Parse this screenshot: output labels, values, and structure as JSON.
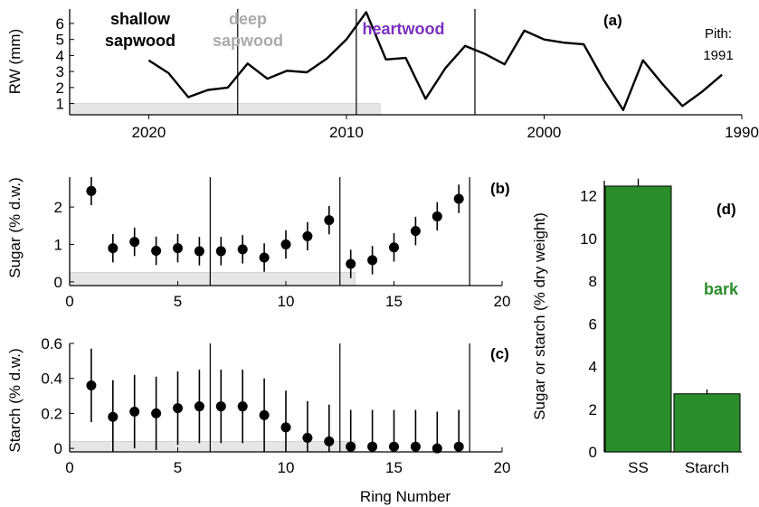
{
  "figure": {
    "shared_xlabel": "Ring Number"
  },
  "chart_data": [
    {
      "panel": "(a)",
      "type": "line",
      "ylabel": "RW (mm)",
      "xlim": [
        2024,
        1990
      ],
      "ylim": [
        0.3,
        6.9
      ],
      "x_reversed": true,
      "xticks": [
        2020,
        2010,
        2000,
        1990
      ],
      "yticks": [
        1,
        2,
        3,
        4,
        5,
        6
      ],
      "grid": false,
      "series": [
        {
          "x": [
            2020,
            2019,
            2018,
            2017,
            2016,
            2015,
            2014,
            2013,
            2012,
            2011,
            2010,
            2009,
            2008,
            2007,
            2006,
            2005,
            2004,
            2003,
            2002,
            2001,
            2000,
            1999,
            1998,
            1997,
            1996,
            1995,
            1994,
            1993,
            1992,
            1991
          ],
          "y": [
            3.7,
            2.9,
            1.4,
            1.85,
            2.0,
            3.5,
            2.55,
            3.05,
            2.95,
            3.8,
            5.0,
            6.7,
            3.75,
            3.85,
            1.3,
            3.2,
            4.6,
            4.1,
            3.45,
            5.55,
            5.0,
            4.8,
            4.7,
            2.5,
            0.6,
            3.7,
            2.2,
            0.85,
            1.75,
            2.8
          ]
        }
      ],
      "annotations": {
        "zone1": "shallow\nsapwood",
        "zone2": "deep\nsapwood",
        "zone3": "heartwood",
        "pith": "Pith:\n1991"
      },
      "zone_boundaries": [
        2015.5,
        2009.5,
        2003.5
      ],
      "shaded_band": {
        "x": [
          2024,
          2008.3
        ],
        "y": [
          0.3,
          1.0
        ]
      },
      "colors": {
        "zone1": "#000000",
        "zone2": "#aaaaaa",
        "zone3": "#7b2fbe",
        "shade": "#e6e6e6"
      }
    },
    {
      "panel": "(b)",
      "type": "scatter",
      "ylabel": "Sugar (% d.w.)",
      "xlim": [
        0,
        20
      ],
      "ylim": [
        -0.1,
        2.8
      ],
      "xticks": [
        0,
        5,
        10,
        15,
        20
      ],
      "yticks": [
        0,
        1,
        2
      ],
      "grid": false,
      "series": [
        {
          "x": [
            1,
            2,
            3,
            4,
            5,
            6,
            7,
            8,
            9,
            10,
            11,
            12,
            13,
            14,
            15,
            16,
            17,
            18
          ],
          "y": [
            2.43,
            0.9,
            1.07,
            0.83,
            0.9,
            0.82,
            0.82,
            0.87,
            0.65,
            1.0,
            1.22,
            1.65,
            0.48,
            0.58,
            0.92,
            1.36,
            1.75,
            2.22
          ],
          "err": [
            0.38,
            0.38,
            0.38,
            0.38,
            0.38,
            0.38,
            0.38,
            0.38,
            0.38,
            0.38,
            0.38,
            0.38,
            0.38,
            0.38,
            0.38,
            0.38,
            0.38,
            0.38
          ]
        }
      ],
      "zone_boundaries": [
        6.5,
        12.5,
        18.5
      ],
      "shaded_band": {
        "x": [
          0,
          13.2
        ],
        "y": [
          -0.1,
          0.25
        ]
      },
      "colors": {
        "shade": "#e6e6e6"
      }
    },
    {
      "panel": "(c)",
      "type": "scatter",
      "ylabel": "Starch (% d.w.)",
      "xlim": [
        0,
        20
      ],
      "ylim": [
        -0.02,
        0.6
      ],
      "xticks": [
        0,
        5,
        10,
        15,
        20
      ],
      "yticks": [
        0,
        0.2,
        0.4,
        0.6
      ],
      "yticklabels": [
        "0",
        "0.2",
        "0.4",
        "0.6"
      ],
      "grid": false,
      "series": [
        {
          "x": [
            1,
            2,
            3,
            4,
            5,
            6,
            7,
            8,
            9,
            10,
            11,
            12,
            13,
            14,
            15,
            16,
            17,
            18
          ],
          "y": [
            0.36,
            0.18,
            0.21,
            0.2,
            0.23,
            0.24,
            0.24,
            0.24,
            0.19,
            0.12,
            0.06,
            0.04,
            0.01,
            0.01,
            0.01,
            0.01,
            0.0,
            0.01
          ],
          "err": [
            0.21,
            0.21,
            0.21,
            0.21,
            0.21,
            0.21,
            0.21,
            0.21,
            0.21,
            0.21,
            0.21,
            0.21,
            0.21,
            0.21,
            0.21,
            0.21,
            0.21,
            0.21
          ]
        }
      ],
      "zone_boundaries": [
        6.5,
        12.5,
        18.5
      ],
      "shaded_band": {
        "x": [
          0,
          13.2
        ],
        "y": [
          -0.02,
          0.04
        ]
      },
      "colors": {
        "shade": "#e6e6e6"
      }
    },
    {
      "panel": "(d)",
      "type": "bar",
      "ylabel": "Sugar or starch (% dry weight)",
      "categories": [
        "SS",
        "Starch"
      ],
      "values": [
        12.45,
        2.72
      ],
      "err": [
        0.35,
        0.2
      ],
      "ylim": [
        0,
        12.7
      ],
      "yticks": [
        0,
        2,
        4,
        6,
        8,
        10,
        12
      ],
      "annotation": "bark",
      "grid": false,
      "colors": {
        "bar": "#2a8c2a",
        "annotation": "#2a8c2a"
      }
    }
  ]
}
